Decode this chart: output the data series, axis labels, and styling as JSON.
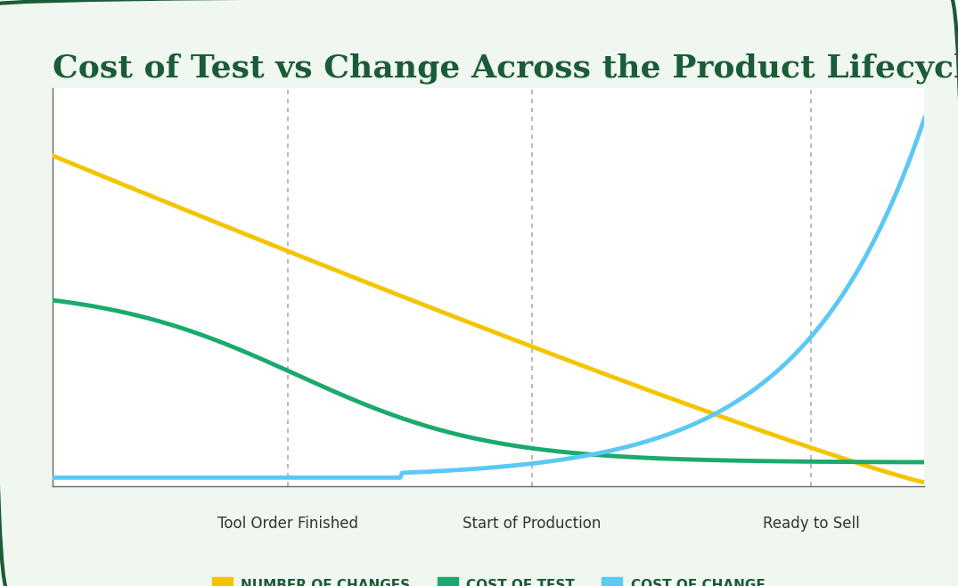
{
  "title": "Cost of Test vs Change Across the Product Lifecycle",
  "title_color": "#1a5c38",
  "title_fontsize": 26,
  "plot_bg_color": "#ffffff",
  "fig_bg_color": "#f0f7f0",
  "border_color": "#1a5c38",
  "vline_positions": [
    0.27,
    0.55,
    0.87
  ],
  "vline_labels": [
    "Tool Order Finished",
    "Start of Production",
    "Ready to Sell"
  ],
  "legend_labels": [
    "NUMBER OF CHANGES",
    "COST OF TEST",
    "COST OF CHANGE"
  ],
  "legend_colors": [
    "#f5c400",
    "#1aaa6e",
    "#5bc8f5"
  ],
  "line_colors": {
    "changes": "#f5c400",
    "test": "#1aaa6e",
    "change": "#5bc8f5"
  },
  "line_widths": {
    "changes": 3.5,
    "test": 3.5,
    "change": 3.5
  },
  "axis_spine_color": "#666666"
}
